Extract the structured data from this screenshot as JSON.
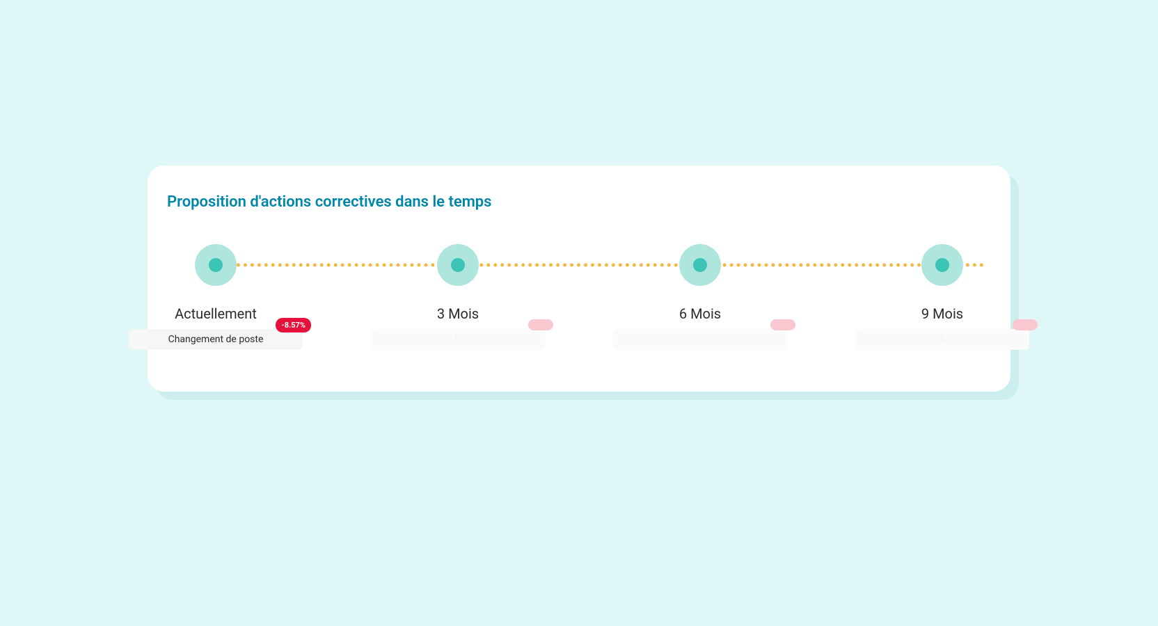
{
  "page": {
    "background_color": "#e0f7f7"
  },
  "card": {
    "title": "Proposition d'actions correctives dans le temps",
    "title_color": "#0086a8",
    "background_color": "#ffffff",
    "shadow_color": "#cceeee",
    "border_radius": 24
  },
  "timeline": {
    "dotted_line_color": "#f4b740",
    "node_outer_color": "#aee6de",
    "node_inner_color": "#3cc4b4",
    "steps": [
      {
        "label": "Actuellement"
      },
      {
        "label": "3 Mois"
      },
      {
        "label": "6 Mois"
      },
      {
        "label": "9 Mois"
      }
    ]
  },
  "chips": {
    "visible_bg": "#f6f6f6",
    "visible_text_color": "#2b2b2b",
    "faded_bg": "#fafafa",
    "faded_text_color": "#cfcfcf",
    "badge_bg": "#e7123b",
    "badge_faded_bg": "#f9c7cf",
    "items": [
      {
        "text": "Changement de poste",
        "badge": "-8.57%",
        "visible": true
      },
      {
        "text": "R",
        "badge": "",
        "visible": false
      },
      {
        "text": "C",
        "badge": "",
        "visible": false
      },
      {
        "text": "A",
        "badge": "",
        "visible": false
      }
    ]
  }
}
